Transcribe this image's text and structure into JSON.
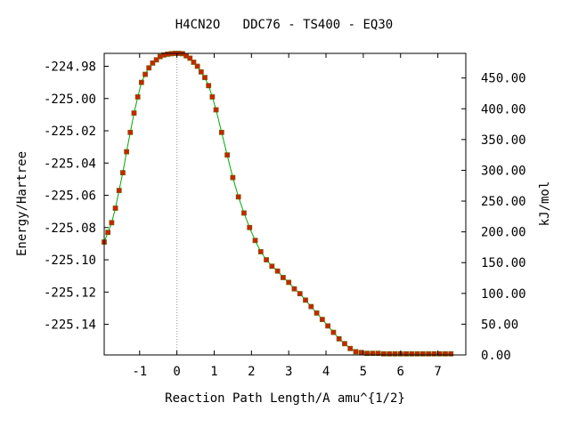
{
  "chart_data": {
    "type": "line",
    "title": "H4CN2O   DDC76 - TS400 - EQ30",
    "xlabel": "Reaction Path Length/A amu^{1/2}",
    "ylabel": "Energy/Hartree",
    "y2label": "kJ/mol",
    "xlim": [
      -1.95,
      7.75
    ],
    "ylim": [
      -225.159,
      -224.972
    ],
    "y2lim": [
      0.0,
      490.0
    ],
    "x_ticks": [
      -1,
      0,
      1,
      2,
      3,
      4,
      5,
      6,
      7
    ],
    "x_tick_labels": [
      "-1",
      "0",
      "1",
      "2",
      "3",
      "4",
      "5",
      "6",
      "7"
    ],
    "y_ticks": [
      -224.98,
      -225.0,
      -225.02,
      -225.04,
      -225.06,
      -225.08,
      -225.1,
      -225.12,
      -225.14
    ],
    "y_tick_labels": [
      "-224.98",
      "-225.00",
      "-225.02",
      "-225.04",
      "-225.06",
      "-225.08",
      "-225.10",
      "-225.12",
      "-225.14"
    ],
    "y2_ticks": [
      0,
      50,
      100,
      150,
      200,
      250,
      300,
      350,
      400,
      450
    ],
    "y2_tick_labels": [
      "0.00",
      "50.00",
      "100.00",
      "150.00",
      "200.00",
      "250.00",
      "300.00",
      "350.00",
      "400.00",
      "450.00"
    ],
    "ts_marker_x": 0,
    "colors": {
      "line": "#00aa00",
      "points": "#cc2200",
      "point_outline": "#7a5a00",
      "ts_line": "#999999"
    },
    "series": [
      {
        "x": [
          -1.95,
          -1.85,
          -1.75,
          -1.65,
          -1.55,
          -1.45,
          -1.35,
          -1.25,
          -1.15,
          -1.05,
          -0.95,
          -0.85,
          -0.75,
          -0.65,
          -0.55,
          -0.45,
          -0.35,
          -0.25,
          -0.15,
          -0.05,
          0.05,
          0.15,
          0.25,
          0.35,
          0.45,
          0.55,
          0.65,
          0.75,
          0.85,
          0.95,
          1.05,
          1.2,
          1.35,
          1.5,
          1.65,
          1.8,
          1.95,
          2.1,
          2.25,
          2.4,
          2.55,
          2.7,
          2.85,
          3.0,
          3.15,
          3.3,
          3.45,
          3.6,
          3.75,
          3.9,
          4.05,
          4.2,
          4.35,
          4.5,
          4.65,
          4.8,
          4.95,
          5.1,
          5.25,
          5.4,
          5.55,
          5.7,
          5.85,
          6.0,
          6.15,
          6.3,
          6.45,
          6.6,
          6.75,
          6.9,
          7.05,
          7.2,
          7.35
        ],
        "y": [
          -225.089,
          -225.083,
          -225.077,
          -225.068,
          -225.057,
          -225.046,
          -225.033,
          -225.021,
          -225.009,
          -224.999,
          -224.99,
          -224.985,
          -224.981,
          -224.978,
          -224.976,
          -224.974,
          -224.973,
          -224.9725,
          -224.9722,
          -224.972,
          -224.972,
          -224.9722,
          -224.9735,
          -224.975,
          -224.9775,
          -224.98,
          -224.9835,
          -224.987,
          -224.992,
          -224.999,
          -225.007,
          -225.021,
          -225.035,
          -225.049,
          -225.061,
          -225.071,
          -225.08,
          -225.088,
          -225.095,
          -225.1,
          -225.104,
          -225.107,
          -225.111,
          -225.114,
          -225.118,
          -225.121,
          -225.125,
          -225.129,
          -225.133,
          -225.137,
          -225.141,
          -225.145,
          -225.149,
          -225.152,
          -225.155,
          -225.157,
          -225.1575,
          -225.158,
          -225.158,
          -225.158,
          -225.1583,
          -225.1583,
          -225.1583,
          -225.1583,
          -225.1583,
          -225.1583,
          -225.1583,
          -225.1583,
          -225.1583,
          -225.1583,
          -225.1583,
          -225.1583,
          -225.1583
        ]
      }
    ]
  }
}
